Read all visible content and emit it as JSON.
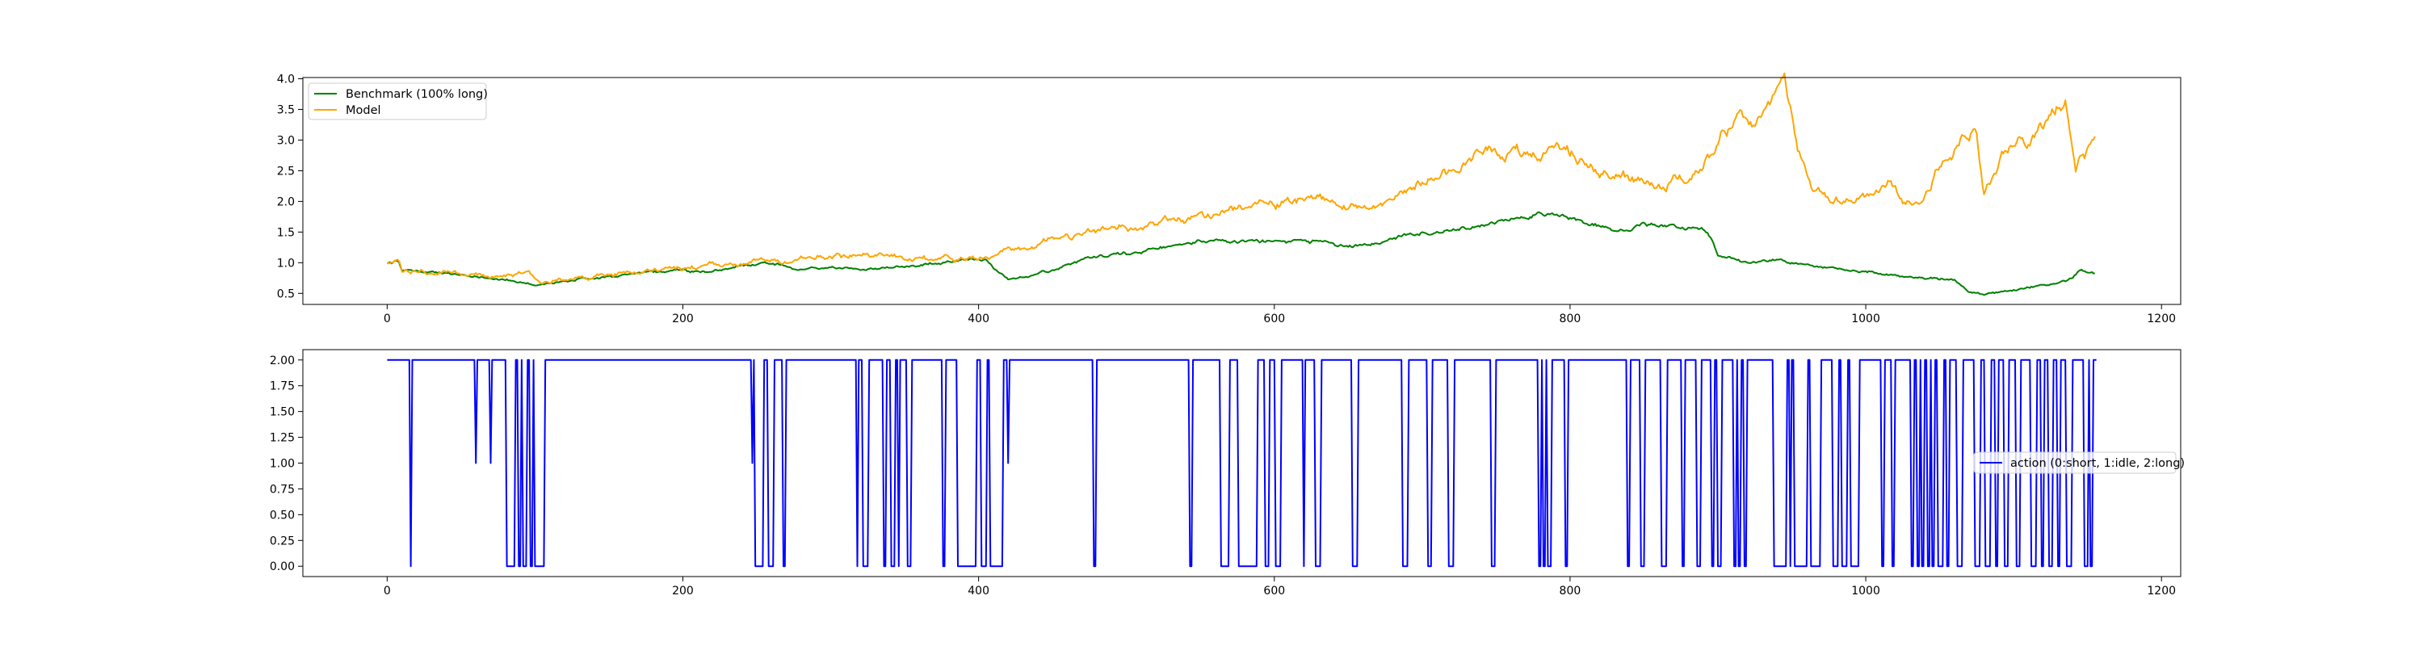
{
  "chart_data": [
    {
      "type": "line",
      "title": "",
      "xlabel": "",
      "ylabel": "",
      "xlim": [
        -57,
        1213
      ],
      "ylim": [
        0.32,
        4.02
      ],
      "xticks": [
        0,
        200,
        400,
        600,
        800,
        1000,
        1200
      ],
      "yticks": [
        0.5,
        1.0,
        1.5,
        2.0,
        2.5,
        3.0,
        3.5,
        4.0
      ],
      "grid": false,
      "legend": "upper left",
      "series": [
        {
          "name": "Benchmark (100% long)",
          "color": "#008000",
          "keypoints": [
            [
              0,
              1.0
            ],
            [
              8,
              1.02
            ],
            [
              10,
              0.88
            ],
            [
              30,
              0.85
            ],
            [
              60,
              0.78
            ],
            [
              80,
              0.72
            ],
            [
              100,
              0.63
            ],
            [
              110,
              0.65
            ],
            [
              130,
              0.73
            ],
            [
              160,
              0.8
            ],
            [
              200,
              0.88
            ],
            [
              220,
              0.85
            ],
            [
              240,
              0.95
            ],
            [
              260,
              0.98
            ],
            [
              280,
              0.92
            ],
            [
              320,
              0.9
            ],
            [
              360,
              0.96
            ],
            [
              390,
              1.05
            ],
            [
              405,
              1.02
            ],
            [
              420,
              0.72
            ],
            [
              440,
              0.82
            ],
            [
              460,
              0.95
            ],
            [
              480,
              1.1
            ],
            [
              500,
              1.15
            ],
            [
              540,
              1.3
            ],
            [
              560,
              1.38
            ],
            [
              580,
              1.32
            ],
            [
              620,
              1.38
            ],
            [
              640,
              1.3
            ],
            [
              660,
              1.28
            ],
            [
              700,
              1.5
            ],
            [
              740,
              1.6
            ],
            [
              770,
              1.78
            ],
            [
              790,
              1.8
            ],
            [
              800,
              1.72
            ],
            [
              830,
              1.55
            ],
            [
              860,
              1.62
            ],
            [
              890,
              1.52
            ],
            [
              895,
              1.4
            ],
            [
              900,
              1.12
            ],
            [
              920,
              1.0
            ],
            [
              940,
              1.05
            ],
            [
              960,
              0.95
            ],
            [
              1000,
              0.85
            ],
            [
              1040,
              0.75
            ],
            [
              1060,
              0.75
            ],
            [
              1070,
              0.5
            ],
            [
              1080,
              0.48
            ],
            [
              1100,
              0.55
            ],
            [
              1130,
              0.68
            ],
            [
              1140,
              0.75
            ],
            [
              1145,
              0.88
            ],
            [
              1155,
              0.83
            ]
          ],
          "noise": 0.025
        },
        {
          "name": "Model",
          "color": "#FFA500",
          "keypoints": [
            [
              0,
              1.0
            ],
            [
              8,
              1.05
            ],
            [
              10,
              0.88
            ],
            [
              30,
              0.85
            ],
            [
              60,
              0.8
            ],
            [
              80,
              0.8
            ],
            [
              95,
              0.86
            ],
            [
              105,
              0.66
            ],
            [
              130,
              0.74
            ],
            [
              160,
              0.82
            ],
            [
              200,
              0.92
            ],
            [
              240,
              0.98
            ],
            [
              280,
              1.08
            ],
            [
              320,
              1.12
            ],
            [
              360,
              1.05
            ],
            [
              400,
              1.08
            ],
            [
              420,
              1.2
            ],
            [
              440,
              1.3
            ],
            [
              460,
              1.4
            ],
            [
              490,
              1.55
            ],
            [
              520,
              1.6
            ],
            [
              540,
              1.7
            ],
            [
              560,
              1.78
            ],
            [
              600,
              1.98
            ],
            [
              640,
              2.05
            ],
            [
              660,
              1.9
            ],
            [
              680,
              2.0
            ],
            [
              700,
              2.35
            ],
            [
              740,
              2.7
            ],
            [
              770,
              2.82
            ],
            [
              800,
              2.8
            ],
            [
              820,
              2.5
            ],
            [
              840,
              2.4
            ],
            [
              860,
              2.3
            ],
            [
              880,
              2.4
            ],
            [
              895,
              2.8
            ],
            [
              905,
              3.25
            ],
            [
              925,
              3.3
            ],
            [
              935,
              3.45
            ],
            [
              945,
              3.8
            ],
            [
              955,
              2.8
            ],
            [
              965,
              2.15
            ],
            [
              985,
              2.0
            ],
            [
              1000,
              2.05
            ],
            [
              1015,
              2.35
            ],
            [
              1025,
              1.95
            ],
            [
              1040,
              2.1
            ],
            [
              1055,
              2.8
            ],
            [
              1075,
              3.2
            ],
            [
              1080,
              2.25
            ],
            [
              1095,
              2.9
            ],
            [
              1110,
              3.0
            ],
            [
              1135,
              3.7
            ],
            [
              1142,
              2.65
            ],
            [
              1155,
              2.9
            ]
          ],
          "noise": 0.045
        }
      ]
    },
    {
      "type": "line",
      "title": "",
      "xlabel": "",
      "ylabel": "",
      "xlim": [
        -57,
        1213
      ],
      "ylim": [
        -0.1,
        2.1
      ],
      "xticks": [
        0,
        200,
        400,
        600,
        800,
        1000,
        1200
      ],
      "yticks": [
        0.0,
        0.25,
        0.5,
        0.75,
        1.0,
        1.25,
        1.5,
        1.75,
        2.0
      ],
      "ytick_labels": [
        "0.00",
        "0.25",
        "0.50",
        "0.75",
        "1.00",
        "1.25",
        "1.50",
        "1.75",
        "2.00"
      ],
      "grid": false,
      "legend": "center right",
      "series": [
        {
          "name": "action (0:short, 1:idle, 2:long)",
          "color": "#0000FF",
          "length": 1157,
          "segments": [
            [
              0,
              2
            ],
            [
              16,
              0
            ],
            [
              17,
              2
            ],
            [
              60,
              1
            ],
            [
              61,
              2
            ],
            [
              70,
              1
            ],
            [
              71,
              2
            ],
            [
              81,
              0
            ],
            [
              87,
              2
            ],
            [
              89,
              0
            ],
            [
              91,
              2
            ],
            [
              92,
              0
            ],
            [
              95,
              2
            ],
            [
              97,
              0
            ],
            [
              99,
              2
            ],
            [
              100,
              0
            ],
            [
              107,
              2
            ],
            [
              247,
              1
            ],
            [
              248,
              2
            ],
            [
              249,
              0
            ],
            [
              255,
              2
            ],
            [
              258,
              0
            ],
            [
              262,
              2
            ],
            [
              268,
              0
            ],
            [
              270,
              2
            ],
            [
              318,
              0
            ],
            [
              319,
              2
            ],
            [
              322,
              0
            ],
            [
              326,
              2
            ],
            [
              336,
              0
            ],
            [
              338,
              2
            ],
            [
              341,
              0
            ],
            [
              344,
              2
            ],
            [
              346,
              0
            ],
            [
              347,
              2
            ],
            [
              352,
              0
            ],
            [
              355,
              2
            ],
            [
              376,
              0
            ],
            [
              378,
              2
            ],
            [
              386,
              0
            ],
            [
              399,
              2
            ],
            [
              402,
              0
            ],
            [
              406,
              2
            ],
            [
              408,
              0
            ],
            [
              417,
              2
            ],
            [
              420,
              1
            ],
            [
              421,
              2
            ],
            [
              478,
              0
            ],
            [
              480,
              2
            ],
            [
              543,
              0
            ],
            [
              545,
              2
            ],
            [
              564,
              0
            ],
            [
              570,
              2
            ],
            [
              576,
              0
            ],
            [
              589,
              2
            ],
            [
              594,
              0
            ],
            [
              597,
              2
            ],
            [
              601,
              0
            ],
            [
              605,
              2
            ],
            [
              620,
              0
            ],
            [
              621,
              2
            ],
            [
              628,
              0
            ],
            [
              632,
              2
            ],
            [
              653,
              0
            ],
            [
              657,
              2
            ],
            [
              687,
              0
            ],
            [
              691,
              2
            ],
            [
              704,
              0
            ],
            [
              707,
              2
            ],
            [
              718,
              0
            ],
            [
              722,
              2
            ],
            [
              747,
              0
            ],
            [
              750,
              2
            ],
            [
              779,
              0
            ],
            [
              781,
              2
            ],
            [
              782,
              0
            ],
            [
              784,
              2
            ],
            [
              785,
              0
            ],
            [
              788,
              2
            ],
            [
              797,
              0
            ],
            [
              799,
              2
            ],
            [
              839,
              0
            ],
            [
              841,
              2
            ],
            [
              848,
              0
            ],
            [
              851,
              2
            ],
            [
              862,
              0
            ],
            [
              866,
              2
            ],
            [
              876,
              0
            ],
            [
              878,
              2
            ],
            [
              886,
              0
            ],
            [
              889,
              2
            ],
            [
              896,
              0
            ],
            [
              898,
              2
            ],
            [
              900,
              0
            ],
            [
              903,
              2
            ],
            [
              911,
              0
            ],
            [
              913,
              2
            ],
            [
              914,
              0
            ],
            [
              916,
              2
            ],
            [
              918,
              0
            ],
            [
              920,
              2
            ],
            [
              938,
              0
            ],
            [
              947,
              2
            ],
            [
              949,
              0
            ],
            [
              950,
              2
            ],
            [
              952,
              0
            ],
            [
              961,
              2
            ],
            [
              963,
              0
            ],
            [
              970,
              2
            ],
            [
              978,
              0
            ],
            [
              982,
              2
            ],
            [
              984,
              0
            ],
            [
              988,
              2
            ],
            [
              990,
              0
            ],
            [
              996,
              2
            ],
            [
              1011,
              0
            ],
            [
              1013,
              2
            ],
            [
              1018,
              0
            ],
            [
              1020,
              2
            ],
            [
              1031,
              0
            ],
            [
              1033,
              2
            ],
            [
              1035,
              0
            ],
            [
              1037,
              2
            ],
            [
              1038,
              0
            ],
            [
              1040,
              2
            ],
            [
              1042,
              0
            ],
            [
              1044,
              2
            ],
            [
              1045,
              0
            ],
            [
              1047,
              2
            ],
            [
              1049,
              0
            ],
            [
              1053,
              2
            ],
            [
              1055,
              0
            ],
            [
              1057,
              2
            ],
            [
              1062,
              0
            ],
            [
              1066,
              2
            ],
            [
              1074,
              0
            ],
            [
              1078,
              2
            ],
            [
              1081,
              0
            ],
            [
              1085,
              2
            ],
            [
              1088,
              0
            ],
            [
              1090,
              2
            ],
            [
              1094,
              0
            ],
            [
              1097,
              2
            ],
            [
              1102,
              0
            ],
            [
              1105,
              2
            ],
            [
              1112,
              0
            ],
            [
              1116,
              2
            ],
            [
              1119,
              0
            ],
            [
              1121,
              2
            ],
            [
              1124,
              0
            ],
            [
              1127,
              2
            ],
            [
              1130,
              0
            ],
            [
              1132,
              2
            ],
            [
              1136,
              0
            ],
            [
              1140,
              2
            ],
            [
              1148,
              0
            ],
            [
              1151,
              2
            ],
            [
              1152,
              0
            ],
            [
              1154,
              2
            ]
          ]
        }
      ]
    }
  ]
}
